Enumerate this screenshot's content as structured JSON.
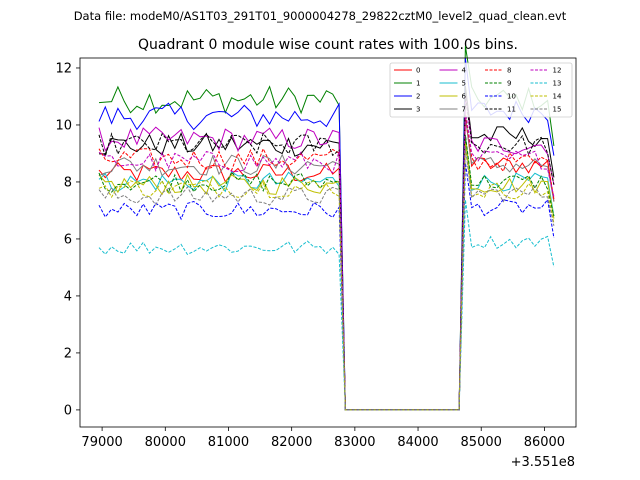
{
  "chart_data": {
    "type": "line",
    "suptitle": "Data file: modeM0/AS1T03_291T01_9000004278_29822cztM0_level2_quad_clean.evt",
    "title": "Quadrant 0 module wise count rates with 100.0s bins.",
    "xlabel": "",
    "ylabel": "",
    "x_offset_label": "+3.551e8",
    "xlim": [
      78650,
      86500
    ],
    "ylim": [
      -0.6,
      12.35
    ],
    "x_ticks": [
      79000,
      80000,
      81000,
      82000,
      83000,
      84000,
      85000,
      86000
    ],
    "x_tick_labels": [
      "79000",
      "80000",
      "81000",
      "82000",
      "83000",
      "84000",
      "85000",
      "86000"
    ],
    "y_ticks": [
      0,
      2,
      4,
      6,
      8,
      10,
      12
    ],
    "y_tick_labels": [
      "0",
      "2",
      "4",
      "6",
      "8",
      "10",
      "12"
    ],
    "x_segments": {
      "seg1_start": 78950,
      "bin": 100,
      "seg1_count": 39,
      "gap_start": 82850,
      "gap_end": 84650,
      "seg2_start": 84750,
      "seg2_count": 15
    },
    "legend": {
      "position": "top-right",
      "columns": 4
    },
    "series": [
      {
        "name": "0",
        "color": "#ff0000",
        "dashed": false,
        "base": 8.3,
        "late": 8.6
      },
      {
        "name": "1",
        "color": "#008000",
        "dashed": false,
        "base": 10.9,
        "late": 10.9
      },
      {
        "name": "2",
        "color": "#0000ff",
        "dashed": false,
        "base": 10.3,
        "late": 10.5
      },
      {
        "name": "3",
        "color": "#000000",
        "dashed": false,
        "base": 9.3,
        "late": 9.6
      },
      {
        "name": "4",
        "color": "#bf00bf",
        "dashed": false,
        "base": 9.5,
        "late": 9.3
      },
      {
        "name": "5",
        "color": "#17becf",
        "dashed": false,
        "base": 8.0,
        "late": 8.0
      },
      {
        "name": "6",
        "color": "#bfbf00",
        "dashed": false,
        "base": 7.9,
        "late": 7.9
      },
      {
        "name": "7",
        "color": "#808080",
        "dashed": false,
        "base": 8.6,
        "late": 8.6
      },
      {
        "name": "8",
        "color": "#ff0000",
        "dashed": true,
        "base": 8.8,
        "late": 8.7
      },
      {
        "name": "9",
        "color": "#008000",
        "dashed": true,
        "base": 8.0,
        "late": 8.0
      },
      {
        "name": "10",
        "color": "#0000ff",
        "dashed": true,
        "base": 7.0,
        "late": 7.1
      },
      {
        "name": "11",
        "color": "#000000",
        "dashed": true,
        "base": 9.3,
        "late": 9.3
      },
      {
        "name": "12",
        "color": "#bf00bf",
        "dashed": true,
        "base": 8.7,
        "late": 8.8
      },
      {
        "name": "13",
        "color": "#17becf",
        "dashed": true,
        "base": 5.7,
        "late": 5.9
      },
      {
        "name": "14",
        "color": "#bfbf00",
        "dashed": true,
        "base": 7.8,
        "late": 7.7
      },
      {
        "name": "15",
        "color": "#808080",
        "dashed": true,
        "base": 7.5,
        "late": 7.6
      }
    ]
  }
}
